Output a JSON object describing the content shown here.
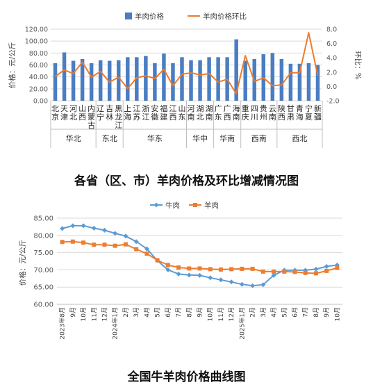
{
  "captions": {
    "top": "各省（区、市）羊肉价格及环比增减情况图",
    "bottom": "全国牛羊肉价格曲线图"
  },
  "colors": {
    "bar": "#4a7dc1",
    "line_orange": "#ee7a2a",
    "beef": "#5b9bd5",
    "lamb": "#ed7d31"
  },
  "chart_data": [
    {
      "type": "bar",
      "ylabel": "价格：元/公斤",
      "y2label": "环比：%",
      "ylim": [
        0,
        120
      ],
      "yticks": [
        "0.00",
        "20.00",
        "40.00",
        "60.00",
        "80.00",
        "100.00",
        "120.00"
      ],
      "y2lim": [
        -2,
        8
      ],
      "y2ticks": [
        "-2.0",
        "0.0",
        "2.0",
        "4.0",
        "6.0",
        "8.0"
      ],
      "legend_position": "top",
      "categories": [
        "北京",
        "天津",
        "河北",
        "山西",
        "内蒙古",
        "辽宁",
        "吉林",
        "黑龙江",
        "上海",
        "江苏",
        "浙江",
        "安徽",
        "福建",
        "江西",
        "山东",
        "河南",
        "湖北",
        "湖南",
        "广东",
        "广西",
        "海南",
        "重庆",
        "四川",
        "贵州",
        "云南",
        "陕西",
        "甘肃",
        "青海",
        "宁夏",
        "新疆"
      ],
      "regions": [
        {
          "name": "华北",
          "start": 0,
          "end": 4
        },
        {
          "name": "东北",
          "start": 5,
          "end": 7
        },
        {
          "name": "华东",
          "start": 8,
          "end": 14
        },
        {
          "name": "华中",
          "start": 15,
          "end": 17
        },
        {
          "name": "华南",
          "start": 18,
          "end": 20
        },
        {
          "name": "西南",
          "start": 21,
          "end": 24
        },
        {
          "name": "西北",
          "start": 25,
          "end": 29
        }
      ],
      "series": [
        {
          "name": "羊肉价格",
          "type": "bar",
          "axis": "left",
          "values": [
            63,
            81,
            67,
            70,
            63,
            68,
            67,
            68,
            73,
            73,
            75,
            63,
            79,
            63,
            73,
            68,
            68,
            73,
            73,
            73,
            103,
            67,
            70,
            78,
            80,
            70,
            62,
            62,
            63,
            60
          ]
        },
        {
          "name": "羊肉价格环比",
          "type": "line",
          "axis": "right",
          "values": [
            1.4,
            2.3,
            1.8,
            3.4,
            1.3,
            2.1,
            0.6,
            1.3,
            -0.3,
            1.2,
            1.5,
            1.1,
            2.4,
            0.1,
            1.7,
            1.9,
            1.6,
            1.8,
            0.6,
            1.0,
            -1.0,
            4.3,
            0.7,
            1.2,
            0.1,
            0.2,
            1.9,
            1.9,
            7.5,
            1.5
          ]
        }
      ]
    },
    {
      "type": "line",
      "ylabel": "价格：元/公斤",
      "ylim": [
        60,
        85
      ],
      "yticks": [
        "60.00",
        "65.00",
        "70.00",
        "75.00",
        "80.00",
        "85.00"
      ],
      "legend_position": "top",
      "x": [
        "2023年8月",
        "9月",
        "10月",
        "11月",
        "12月",
        "2024年1月",
        "2月",
        "3月",
        "4月",
        "5月",
        "6月",
        "7月",
        "8月",
        "9月",
        "10月",
        "11月",
        "12月",
        "2025年1月",
        "2月",
        "3月",
        "4月",
        "5月",
        "6月",
        "7月",
        "8月",
        "9月",
        "10月"
      ],
      "series": [
        {
          "name": "牛肉",
          "values": [
            82.0,
            82.8,
            82.8,
            82.1,
            81.5,
            80.6,
            79.8,
            78.2,
            76.1,
            72.7,
            70.0,
            68.8,
            68.5,
            68.4,
            67.7,
            67.1,
            66.5,
            65.8,
            65.4,
            65.7,
            68.4,
            69.9,
            69.9,
            69.9,
            70.2,
            71.0,
            71.4
          ]
        },
        {
          "name": "羊肉",
          "values": [
            78.1,
            78.2,
            77.9,
            77.3,
            77.3,
            77.0,
            77.4,
            76.0,
            74.7,
            72.8,
            71.4,
            70.7,
            70.4,
            70.4,
            70.2,
            70.1,
            70.2,
            70.3,
            70.3,
            69.5,
            69.5,
            69.5,
            69.4,
            69.1,
            69.0,
            69.7,
            70.6
          ]
        }
      ]
    }
  ]
}
